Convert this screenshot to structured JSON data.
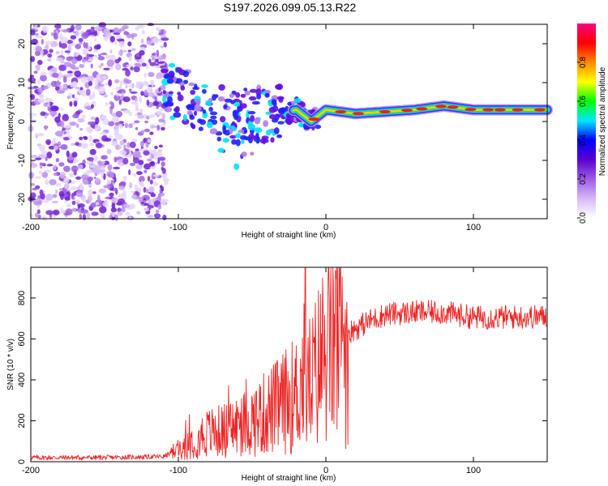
{
  "title": "S197.2026.099.05.13.R22",
  "chart_data": [
    {
      "type": "heatmap",
      "xlabel": "Height of straight line (km)",
      "ylabel": "Frequency (Hz)",
      "xlim": [
        -200,
        150
      ],
      "ylim": [
        -25,
        25
      ],
      "x_ticks": [
        -200,
        -100,
        0,
        100
      ],
      "y_ticks": [
        -20,
        -10,
        0,
        10,
        20
      ],
      "colorbar": {
        "label": "Normalized spectral amplitude",
        "range": [
          0,
          1
        ],
        "ticks": [
          0.0,
          0.2,
          0.4,
          0.6,
          0.8
        ],
        "colors": [
          "#ffffff",
          "#d6b8f5",
          "#9c5ce6",
          "#5a00d0",
          "#0000ff",
          "#00e8ff",
          "#00ff00",
          "#ffff00",
          "#ff8800",
          "#ff0000",
          "#ff0080"
        ]
      },
      "ridge": [
        {
          "x": -120,
          "f": 10
        },
        {
          "x": -100,
          "f": 7
        },
        {
          "x": -80,
          "f": 4
        },
        {
          "x": -60,
          "f": 1
        },
        {
          "x": -40,
          "f": 2
        },
        {
          "x": -20,
          "f": 3
        },
        {
          "x": -10,
          "f": 0
        },
        {
          "x": 0,
          "f": 3
        },
        {
          "x": 20,
          "f": 2
        },
        {
          "x": 60,
          "f": 3
        },
        {
          "x": 80,
          "f": 4
        },
        {
          "x": 100,
          "f": 3
        },
        {
          "x": 150,
          "f": 3
        }
      ],
      "noise_region": [
        -200,
        -108
      ]
    },
    {
      "type": "line",
      "xlabel": "Height of straight line (km)",
      "ylabel": "SNR (10 * v/v)",
      "xlim": [
        -200,
        150
      ],
      "ylim": [
        0,
        950
      ],
      "x_ticks": [
        -200,
        -100,
        0,
        100
      ],
      "y_ticks": [
        0,
        200,
        400,
        600,
        800
      ],
      "color": "#ee2222",
      "series": [
        {
          "name": "SNR",
          "x": [
            -200,
            -150,
            -110,
            -100,
            -90,
            -80,
            -70,
            -60,
            -50,
            -40,
            -30,
            -20,
            -15,
            -10,
            0,
            10,
            20,
            30,
            40,
            60,
            80,
            100,
            120,
            150
          ],
          "y": [
            20,
            20,
            25,
            60,
            110,
            140,
            150,
            175,
            200,
            240,
            280,
            330,
            420,
            380,
            560,
            610,
            650,
            690,
            720,
            730,
            730,
            705,
            705,
            710
          ]
        }
      ],
      "peak": {
        "x": -14,
        "y": 950
      }
    }
  ]
}
